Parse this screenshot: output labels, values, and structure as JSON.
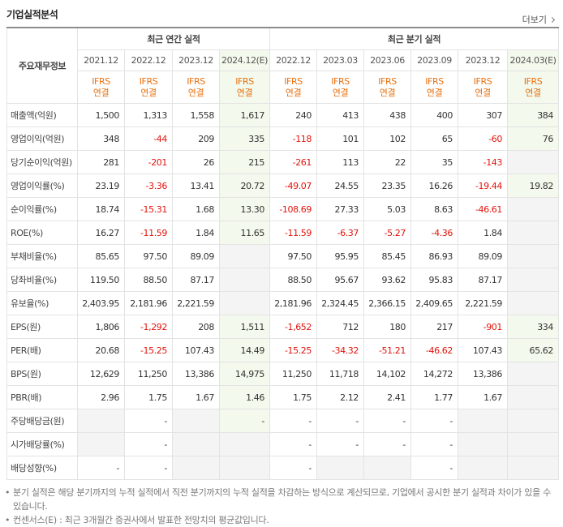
{
  "header": {
    "title": "기업실적분석",
    "more_button": "더보기"
  },
  "table": {
    "row_header": "주요재무정보",
    "negative_color": "#e3120b",
    "estimate_background": "#f3f9ec",
    "empty_background": "#f4f4f4",
    "groups": [
      {
        "label": "최근 연간 실적",
        "columns": [
          {
            "period": "2021.12",
            "standard": "IFRS",
            "basis": "연결",
            "estimate": false
          },
          {
            "period": "2022.12",
            "standard": "IFRS",
            "basis": "연결",
            "estimate": false
          },
          {
            "period": "2023.12",
            "standard": "IFRS",
            "basis": "연결",
            "estimate": false
          },
          {
            "period": "2024.12(E)",
            "standard": "IFRS",
            "basis": "연결",
            "estimate": true
          }
        ]
      },
      {
        "label": "최근 분기 실적",
        "columns": [
          {
            "period": "2022.12",
            "standard": "IFRS",
            "basis": "연결",
            "estimate": false
          },
          {
            "period": "2023.03",
            "standard": "IFRS",
            "basis": "연결",
            "estimate": false
          },
          {
            "period": "2023.06",
            "standard": "IFRS",
            "basis": "연결",
            "estimate": false
          },
          {
            "period": "2023.09",
            "standard": "IFRS",
            "basis": "연결",
            "estimate": false
          },
          {
            "period": "2023.12",
            "standard": "IFRS",
            "basis": "연결",
            "estimate": false
          },
          {
            "period": "2024.03(E)",
            "standard": "IFRS",
            "basis": "연결",
            "estimate": true
          }
        ]
      }
    ],
    "row_groups": [
      [
        {
          "label": "매출액(억원)",
          "cells": [
            "1,500",
            "1,313",
            "1,558",
            "1,617",
            "240",
            "413",
            "438",
            "400",
            "307",
            "384"
          ]
        },
        {
          "label": "영업이익(억원)",
          "cells": [
            "348",
            "-44",
            "209",
            "335",
            "-118",
            "101",
            "102",
            "65",
            "-60",
            "76"
          ]
        },
        {
          "label": "당기순이익(억원)",
          "cells": [
            "281",
            "-201",
            "26",
            "215",
            "-261",
            "113",
            "22",
            "35",
            "-143",
            null
          ]
        }
      ],
      [
        {
          "label": "영업이익률(%)",
          "cells": [
            "23.19",
            "-3.36",
            "13.41",
            "20.72",
            "-49.07",
            "24.55",
            "23.35",
            "16.26",
            "-19.44",
            "19.82"
          ]
        },
        {
          "label": "순이익률(%)",
          "cells": [
            "18.74",
            "-15.31",
            "1.68",
            "13.30",
            "-108.69",
            "27.33",
            "5.03",
            "8.63",
            "-46.61",
            null
          ]
        },
        {
          "label": "ROE(%)",
          "cells": [
            "16.27",
            "-11.59",
            "1.84",
            "11.65",
            "-11.59",
            "-6.37",
            "-5.27",
            "-4.36",
            "1.84",
            null
          ]
        }
      ],
      [
        {
          "label": "부채비율(%)",
          "cells": [
            "85.65",
            "97.50",
            "89.09",
            null,
            "97.50",
            "95.95",
            "85.45",
            "86.93",
            "89.09",
            null
          ]
        },
        {
          "label": "당좌비율(%)",
          "cells": [
            "119.50",
            "88.50",
            "87.17",
            null,
            "88.50",
            "95.67",
            "93.62",
            "95.83",
            "87.17",
            null
          ]
        },
        {
          "label": "유보율(%)",
          "cells": [
            "2,403.95",
            "2,181.96",
            "2,221.59",
            null,
            "2,181.96",
            "2,324.45",
            "2,366.15",
            "2,409.65",
            "2,221.59",
            null
          ]
        }
      ],
      [
        {
          "label": "EPS(원)",
          "cells": [
            "1,806",
            "-1,292",
            "208",
            "1,511",
            "-1,652",
            "712",
            "180",
            "217",
            "-901",
            "334"
          ]
        },
        {
          "label": "PER(배)",
          "cells": [
            "20.68",
            "-15.25",
            "107.43",
            "14.49",
            "-15.25",
            "-34.32",
            "-51.21",
            "-46.62",
            "107.43",
            "65.62"
          ]
        },
        {
          "label": "BPS(원)",
          "cells": [
            "12,629",
            "11,250",
            "13,386",
            "14,975",
            "11,250",
            "11,718",
            "14,102",
            "14,272",
            "13,386",
            null
          ]
        },
        {
          "label": "PBR(배)",
          "cells": [
            "2.96",
            "1.75",
            "1.67",
            "1.46",
            "1.75",
            "2.12",
            "2.41",
            "1.77",
            "1.67",
            null
          ]
        }
      ],
      [
        {
          "label": "주당배당금(원)",
          "cells": [
            null,
            "-",
            null,
            "-",
            "-",
            "-",
            "-",
            "-",
            null,
            null
          ]
        },
        {
          "label": "시가배당률(%)",
          "cells": [
            null,
            "-",
            null,
            null,
            "-",
            "-",
            "-",
            "-",
            null,
            null
          ]
        },
        {
          "label": "배당성향(%)",
          "cells": [
            "-",
            "-",
            null,
            null,
            "-",
            null,
            null,
            "-",
            null,
            null
          ]
        }
      ]
    ]
  },
  "notes": [
    "분기 실적은 해당 분기까지의 누적 실적에서 직전 분기까지의 누적 실적을 차감하는 방식으로 계산되므로, 기업에서 공시한 분기 실적과 차이가 있을 수 있습니다.",
    "컨센서스(E) : 최근 3개월간 증권사에서 발표한 전망치의 평균값입니다."
  ]
}
